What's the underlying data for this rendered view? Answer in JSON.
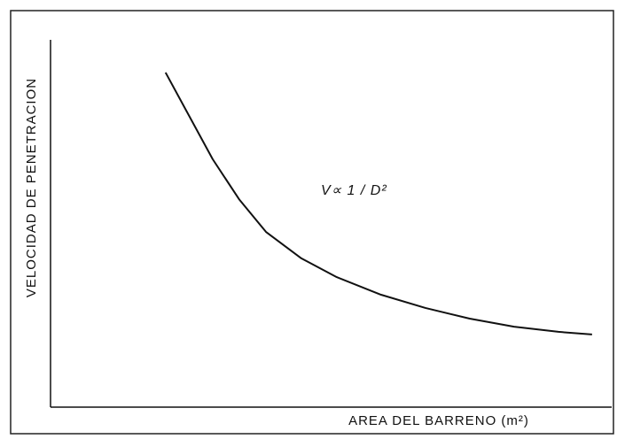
{
  "chart_data": {
    "type": "line",
    "xlabel": "AREA DEL BARRENO (m²)",
    "ylabel": "VELOCIDAD DE PENETRACION",
    "annotation": "V∝ 1 / D²",
    "x": [
      20.5,
      24.2,
      28.9,
      33.6,
      38.4,
      44.7,
      51.0,
      58.9,
      66.8,
      74.7,
      82.6,
      90.5,
      96.5
    ],
    "series": [
      {
        "color": "#111111",
        "values": [
          91.1,
          80.7,
          67.5,
          56.6,
          47.7,
          40.5,
          35.4,
          30.6,
          27.0,
          24.1,
          21.9,
          20.5,
          19.8
        ]
      }
    ],
    "xlim": [
      0,
      100
    ],
    "ylim": [
      0,
      100
    ]
  }
}
